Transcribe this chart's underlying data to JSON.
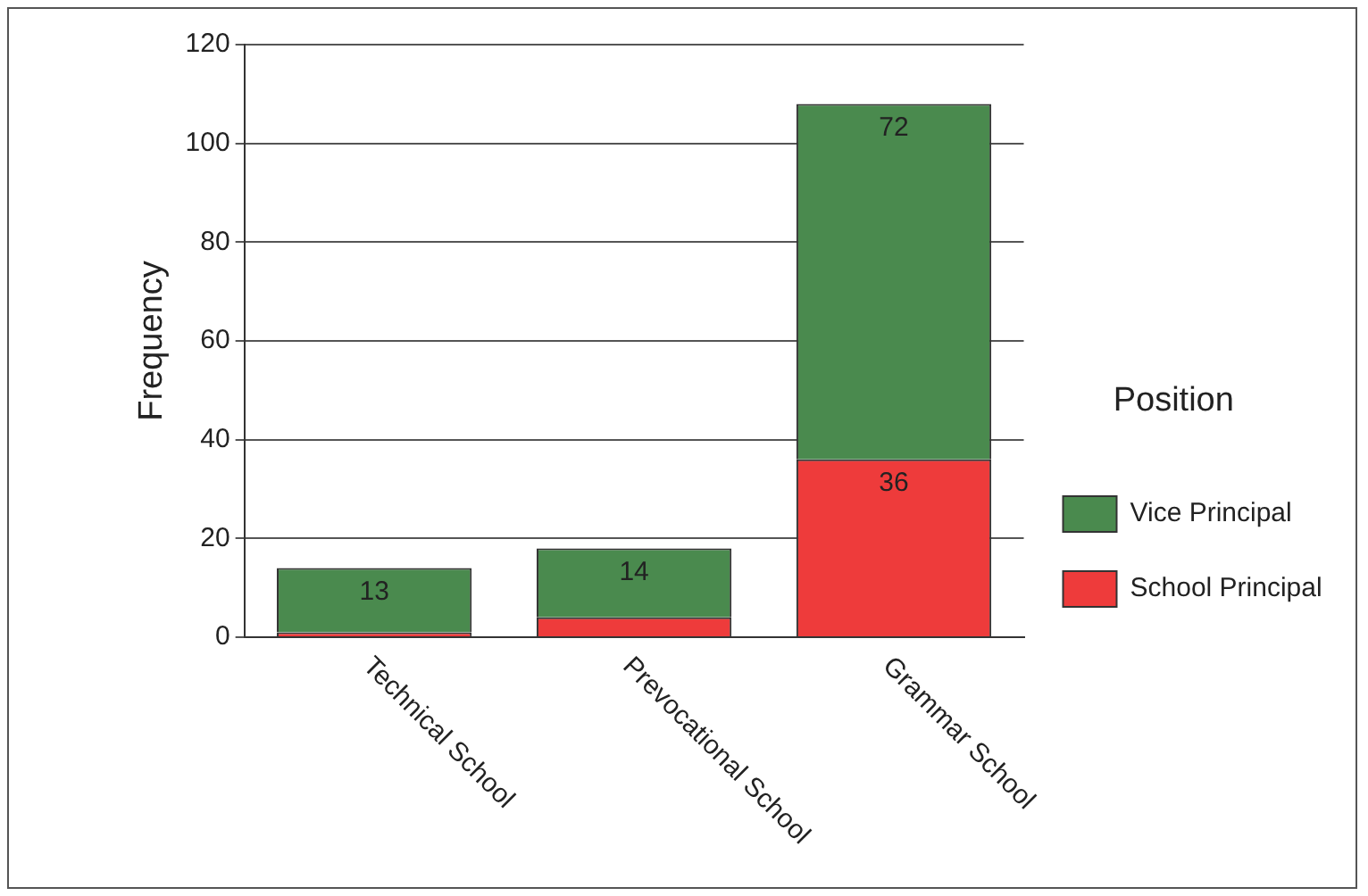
{
  "chart_data": {
    "type": "bar",
    "stacked": true,
    "categories": [
      "Technical School",
      "Prevocational School",
      "Grammar School"
    ],
    "series": [
      {
        "name": "School Principal",
        "color": "#ee3b3b",
        "values": [
          1,
          4,
          36
        ],
        "value_labels": [
          null,
          null,
          "36"
        ]
      },
      {
        "name": "Vice Principal",
        "color": "#4a8a4e",
        "values": [
          13,
          14,
          72
        ],
        "value_labels": [
          "13",
          "14",
          "72"
        ]
      }
    ],
    "ylabel": "Frequency",
    "legend_title": "Position",
    "legend": "right",
    "ylim": [
      0,
      120
    ],
    "yticks": [
      0,
      20,
      40,
      60,
      80,
      100,
      120
    ],
    "grid": "y"
  }
}
